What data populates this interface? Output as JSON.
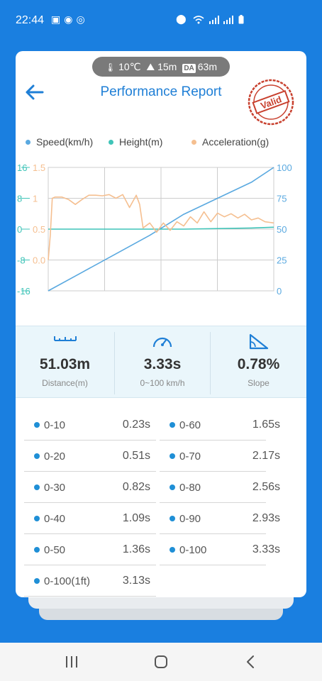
{
  "status_bar": {
    "time": "22:44",
    "left_icons": [
      "image-icon",
      "messenger-icon",
      "instagram-icon"
    ],
    "right_icons": [
      "location-icon",
      "wifi-icon",
      "signal-icon",
      "signal-icon",
      "battery-icon"
    ]
  },
  "conditions": {
    "temperature": "10℃",
    "altitude": "15m",
    "da_badge": "DA",
    "density_altitude": "63m"
  },
  "header": {
    "title": "Performance Report",
    "stamp_text": "Valid"
  },
  "legend": [
    {
      "label": "Speed(km/h)",
      "color": "#5aa9e0"
    },
    {
      "label": "Height(m)",
      "color": "#3fc4b8"
    },
    {
      "label": "Acceleration(g)",
      "color": "#f5bf90"
    }
  ],
  "chart_data": {
    "type": "line",
    "axes": {
      "height_axis": {
        "ticks": [
          "16",
          "8",
          "0",
          "-8",
          "-16"
        ],
        "range": [
          -16,
          16
        ],
        "color": "#3fc4b8"
      },
      "accel_axis": {
        "ticks": [
          "1.5",
          "1",
          "0.5",
          "0.0"
        ],
        "range": [
          -0.5,
          1.5
        ],
        "color": "#f5bf90"
      },
      "speed_axis": {
        "ticks": [
          "100",
          "75",
          "50",
          "25",
          "0"
        ],
        "range": [
          0,
          100
        ],
        "color": "#5aa9e0"
      }
    },
    "grid": true,
    "series": [
      {
        "name": "Speed(km/h)",
        "color": "#5aa9e0",
        "x": [
          0,
          0.5,
          1,
          1.5,
          2,
          2.5,
          3,
          3.33
        ],
        "y": [
          0,
          15,
          30,
          45,
          62,
          75,
          88,
          100
        ]
      },
      {
        "name": "Height(m)",
        "color": "#3fc4b8",
        "x": [
          0,
          1,
          2,
          3,
          3.33
        ],
        "y": [
          0,
          0,
          0,
          0.3,
          0.5
        ]
      },
      {
        "name": "Acceleration(g)",
        "color": "#f5bf90",
        "x": [
          0,
          0.03,
          0.06,
          0.1,
          0.2,
          0.3,
          0.4,
          0.5,
          0.6,
          0.7,
          0.8,
          0.9,
          1.0,
          1.1,
          1.2,
          1.3,
          1.35,
          1.4,
          1.5,
          1.6,
          1.7,
          1.8,
          1.9,
          2.0,
          2.1,
          2.2,
          2.3,
          2.4,
          2.5,
          2.6,
          2.7,
          2.8,
          2.9,
          3.0,
          3.1,
          3.2,
          3.33
        ],
        "y": [
          0.0,
          0.4,
          1.0,
          1.02,
          1.02,
          0.98,
          0.9,
          0.98,
          1.05,
          1.05,
          1.04,
          1.06,
          1.0,
          1.06,
          0.85,
          1.05,
          0.9,
          0.52,
          0.6,
          0.45,
          0.6,
          0.48,
          0.62,
          0.55,
          0.7,
          0.6,
          0.78,
          0.62,
          0.76,
          0.7,
          0.75,
          0.68,
          0.74,
          0.65,
          0.68,
          0.62,
          0.6
        ]
      }
    ]
  },
  "stats": [
    {
      "value": "51.03m",
      "label": "Distance(m)",
      "icon": "ruler-icon"
    },
    {
      "value": "3.33s",
      "label": "0~100 km/h",
      "icon": "speedometer-icon"
    },
    {
      "value": "0.78%",
      "label": "Slope",
      "icon": "slope-icon"
    }
  ],
  "timings": [
    {
      "label": "0-10",
      "value": "0.23s"
    },
    {
      "label": "0-60",
      "value": "1.65s"
    },
    {
      "label": "0-20",
      "value": "0.51s"
    },
    {
      "label": "0-70",
      "value": "2.17s"
    },
    {
      "label": "0-30",
      "value": "0.82s"
    },
    {
      "label": "0-80",
      "value": "2.56s"
    },
    {
      "label": "0-40",
      "value": "1.09s"
    },
    {
      "label": "0-90",
      "value": "2.93s"
    },
    {
      "label": "0-50",
      "value": "1.36s"
    },
    {
      "label": "0-100",
      "value": "3.33s"
    },
    {
      "label": "0-100(1ft)",
      "value": "3.13s"
    }
  ],
  "navbar": {
    "buttons": [
      "recent-apps-icon",
      "home-icon",
      "back-nav-icon"
    ]
  }
}
